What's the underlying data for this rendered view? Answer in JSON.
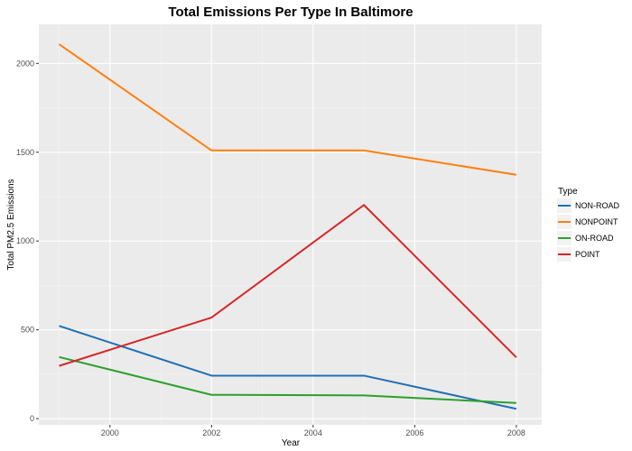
{
  "chart_data": {
    "type": "line",
    "title": "Total Emissions Per Type In Baltimore",
    "xlabel": "Year",
    "ylabel": "Total PM2.5 Emissions",
    "x": [
      1999,
      2002,
      2005,
      2008
    ],
    "xlim": [
      1998.6,
      2008.5
    ],
    "ylim": [
      -35,
      2220
    ],
    "xticks": [
      2000,
      2002,
      2004,
      2006,
      2008
    ],
    "xtick_labels": [
      "2000",
      "2002",
      "2004",
      "2006",
      "2008"
    ],
    "yticks": [
      0,
      500,
      1000,
      1500,
      2000
    ],
    "ytick_labels": [
      "0",
      "500",
      "1000",
      "1500",
      "2000"
    ],
    "grid": true,
    "legend": {
      "title": "Type",
      "placement": "right"
    },
    "series": [
      {
        "name": "NON-ROAD",
        "color": "#1f6fb4",
        "values": [
          522,
          242,
          242,
          55
        ]
      },
      {
        "name": "NONPOINT",
        "color": "#ff7f0e",
        "values": [
          2108,
          1510,
          1510,
          1373
        ]
      },
      {
        "name": "ON-ROAD",
        "color": "#2ca02c",
        "values": [
          347,
          134,
          131,
          88
        ]
      },
      {
        "name": "POINT",
        "color": "#d62728",
        "values": [
          297,
          569,
          1203,
          345
        ]
      }
    ]
  }
}
